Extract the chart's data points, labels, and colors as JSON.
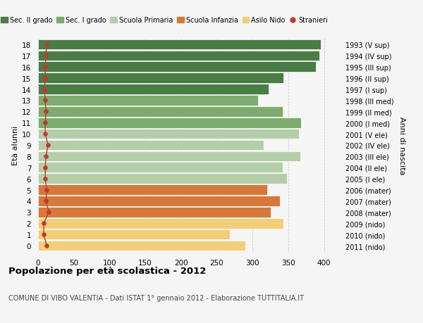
{
  "ages": [
    18,
    17,
    16,
    15,
    14,
    13,
    12,
    11,
    10,
    9,
    8,
    7,
    6,
    5,
    4,
    3,
    2,
    1,
    0
  ],
  "years": [
    "1993 (V sup)",
    "1994 (IV sup)",
    "1995 (III sup)",
    "1996 (II sup)",
    "1997 (I sup)",
    "1998 (III med)",
    "1999 (II med)",
    "2000 (I med)",
    "2001 (V ele)",
    "2002 (IV ele)",
    "2003 (III ele)",
    "2004 (II ele)",
    "2005 (I ele)",
    "2006 (mater)",
    "2007 (mater)",
    "2008 (mater)",
    "2009 (nido)",
    "2010 (nido)",
    "2011 (nido)"
  ],
  "bar_values": [
    395,
    393,
    388,
    343,
    322,
    308,
    342,
    368,
    365,
    315,
    367,
    342,
    348,
    320,
    338,
    325,
    343,
    268,
    290
  ],
  "stranieri": [
    12,
    11,
    10,
    10,
    9,
    10,
    11,
    10,
    10,
    14,
    11,
    10,
    10,
    12,
    11,
    15,
    8,
    8,
    12
  ],
  "bar_colors": [
    "#4a7c45",
    "#4a7c45",
    "#4a7c45",
    "#4a7c45",
    "#4a7c45",
    "#7dab6e",
    "#7dab6e",
    "#7dab6e",
    "#b5ceaa",
    "#b5ceaa",
    "#b5ceaa",
    "#b5ceaa",
    "#b5ceaa",
    "#d4793a",
    "#d4793a",
    "#d4793a",
    "#f2ce7a",
    "#f2ce7a",
    "#f2ce7a"
  ],
  "legend_labels": [
    "Sec. II grado",
    "Sec. I grado",
    "Scuola Primaria",
    "Scuola Infanzia",
    "Asilo Nido",
    "Stranieri"
  ],
  "legend_colors": [
    "#4a7c45",
    "#7dab6e",
    "#b5ceaa",
    "#d4793a",
    "#f2ce7a",
    "#c0392b"
  ],
  "ylabel": "Età alunni",
  "right_label": "Anni di nascita",
  "title": "Popolazione per età scolastica - 2012",
  "subtitle": "COMUNE DI VIBO VALENTIA - Dati ISTAT 1° gennaio 2012 - Elaborazione TUTTITALIA.IT",
  "xlim": [
    0,
    420
  ],
  "xticks": [
    0,
    50,
    100,
    150,
    200,
    250,
    300,
    350,
    400
  ],
  "bg_color": "#f5f5f5",
  "stranieri_color": "#c0392b",
  "bar_height": 0.92
}
